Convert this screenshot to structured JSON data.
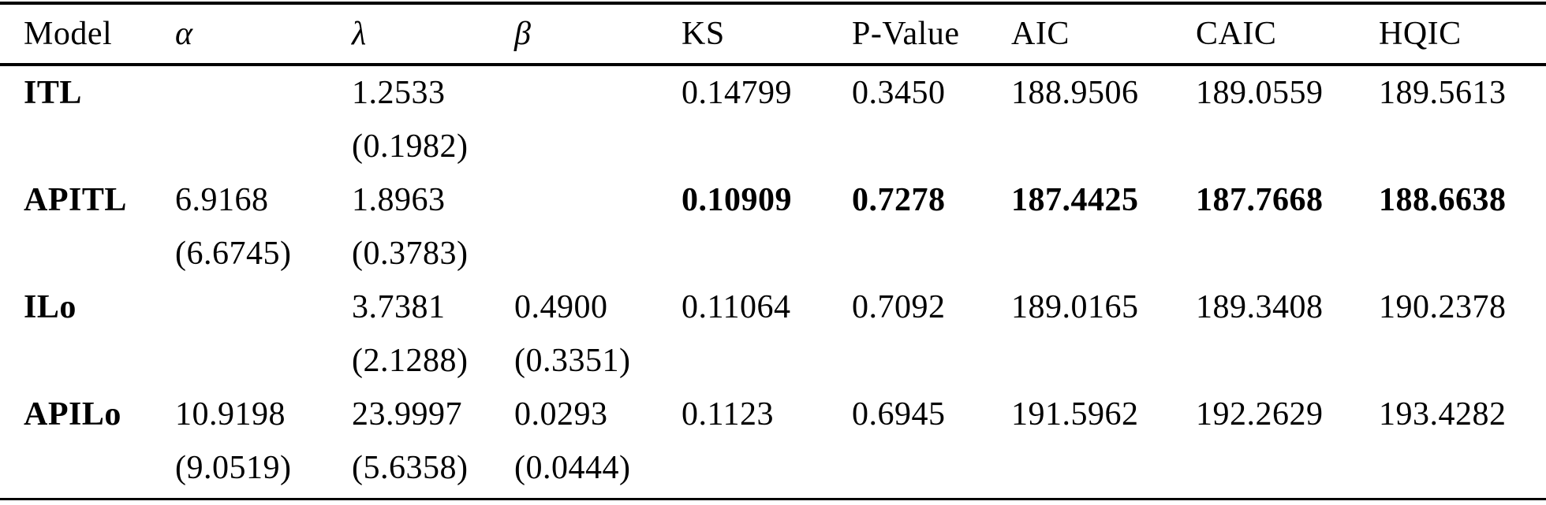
{
  "page": {
    "background_color": "#ffffff",
    "text_color": "#000000"
  },
  "table": {
    "headers": {
      "model": "Model",
      "alpha": "α",
      "lambda": "λ",
      "beta": "β",
      "ks": "KS",
      "pvalue": "P-Value",
      "aic": "AIC",
      "caic": "CAIC",
      "hqic": "HQIC"
    },
    "rows": [
      {
        "model": "ITL",
        "est": {
          "alpha": "",
          "lambda": "1.2533",
          "beta": "",
          "ks": "0.14799",
          "pvalue": "0.3450",
          "aic": "188.9506",
          "caic": "189.0559",
          "hqic": "189.5613"
        },
        "se": {
          "alpha": "",
          "lambda": "(0.1982)",
          "beta": ""
        }
      },
      {
        "model": "APITL",
        "est": {
          "alpha": "6.9168",
          "lambda": "1.8963",
          "beta": "",
          "ks": "0.10909",
          "pvalue": "0.7278",
          "aic": "187.4425",
          "caic": "187.7668",
          "hqic": "188.6638"
        },
        "se": {
          "alpha": "(6.6745)",
          "lambda": "(0.3783)",
          "beta": ""
        }
      },
      {
        "model": "ILo",
        "est": {
          "alpha": "",
          "lambda": "3.7381",
          "beta": "0.4900",
          "ks": "0.11064",
          "pvalue": "0.7092",
          "aic": "189.0165",
          "caic": "189.3408",
          "hqic": "190.2378"
        },
        "se": {
          "alpha": "",
          "lambda": "(2.1288)",
          "beta": "(0.3351)"
        }
      },
      {
        "model": "APILo",
        "est": {
          "alpha": "10.9198",
          "lambda": "23.9997",
          "beta": "0.0293",
          "ks": "0.1123",
          "pvalue": "0.6945",
          "aic": "191.5962",
          "caic": "192.2629",
          "hqic": "193.4282"
        },
        "se": {
          "alpha": "(9.0519)",
          "lambda": "(5.6358)",
          "beta": "(0.0444)"
        }
      }
    ]
  }
}
